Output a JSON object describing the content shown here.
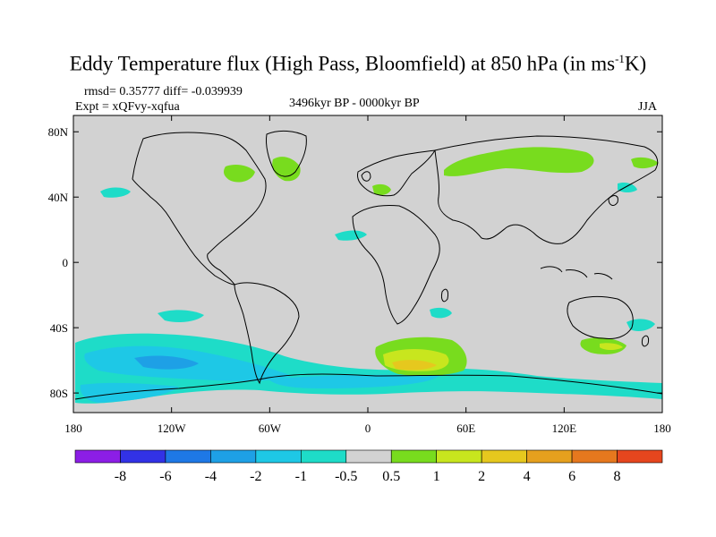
{
  "title": {
    "main": "Eddy Temperature flux (High Pass, Bloomfield) at 850 hPa (in ms",
    "sup": "-1",
    "end": "K)"
  },
  "stats": "rmsd= 0.35777  diff= -0.039939",
  "expt": "Expt = xQFvy-xqfua",
  "period": "3496kyr BP - 0000kyr BP",
  "season": "JJA",
  "lat_labels": [
    "80N",
    "40N",
    "0",
    "40S",
    "80S"
  ],
  "lat_values": [
    80,
    40,
    0,
    -40,
    -80
  ],
  "lon_labels": [
    "180",
    "120W",
    "60W",
    "0",
    "60E",
    "120E",
    "180"
  ],
  "lon_values": [
    -180,
    -120,
    -60,
    0,
    60,
    120,
    180
  ],
  "colorbar": {
    "colors": [
      "#8c1ee6",
      "#3232e6",
      "#1e78e6",
      "#1ea0e6",
      "#1ec8e6",
      "#1edcc8",
      "#d2d2d2",
      "#78dc1e",
      "#c8e61e",
      "#e6c81e",
      "#e6a01e",
      "#e6781e",
      "#e6461e"
    ],
    "labels": [
      "-8",
      "-6",
      "-4",
      "-2",
      "-1",
      "-0.5",
      "0.5",
      "1",
      "2",
      "4",
      "6",
      "8"
    ]
  },
  "colors": {
    "background": "#d2d2d2",
    "coast": "#000000"
  }
}
